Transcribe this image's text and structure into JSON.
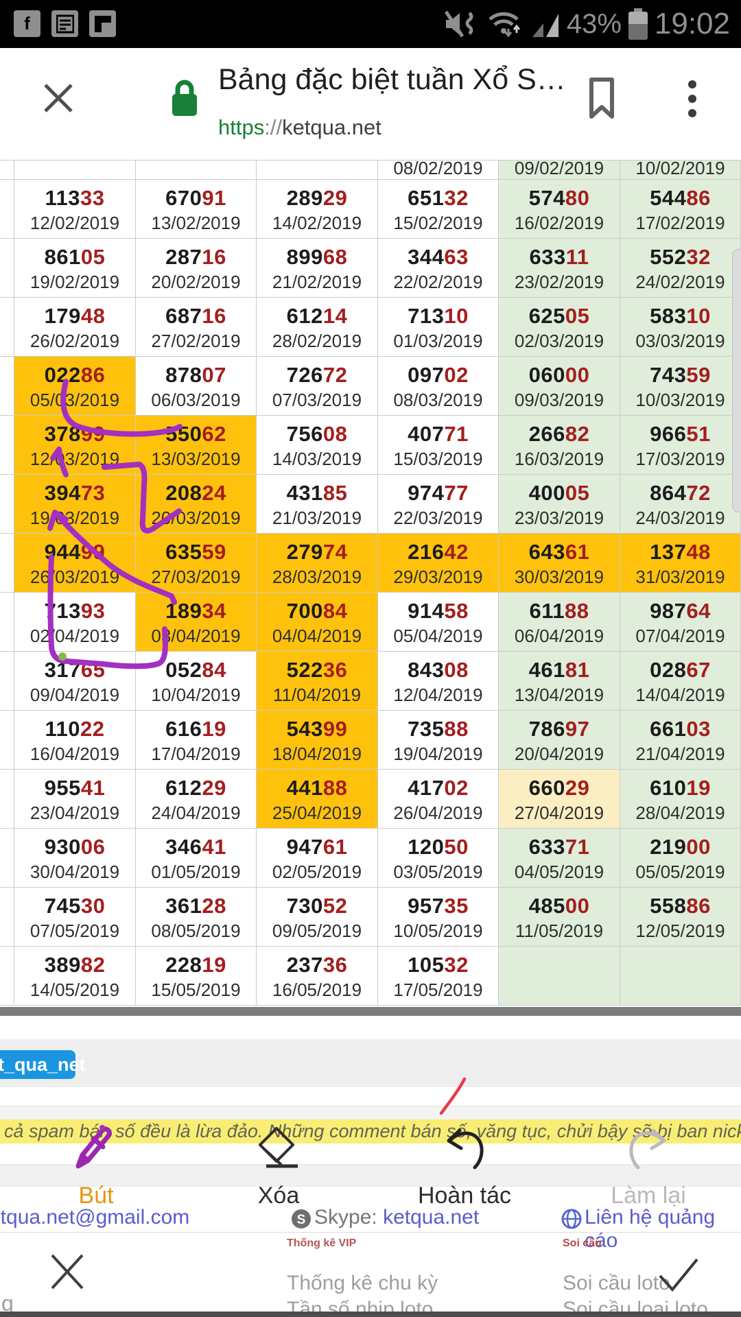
{
  "status_bar": {
    "time": "19:02",
    "battery_percent": "43%",
    "left_icons": [
      "facebook-icon",
      "notes-icon",
      "flipboard-icon"
    ],
    "right_icons": [
      "mute-vibrate-icon",
      "wifi-icon",
      "signal-icon",
      "battery-icon"
    ]
  },
  "browser": {
    "page_title": "Bảng đặc biệt tuần Xổ S…",
    "url_scheme": "https",
    "url_sep": "://",
    "url_host": "ketqua.net"
  },
  "table": {
    "partial_row": {
      "dates": [
        "",
        "",
        "",
        "08/02/2019",
        "09/02/2019",
        "10/02/2019"
      ],
      "bgs": [
        "w",
        "w",
        "w",
        "w",
        "g",
        "g"
      ]
    },
    "rows": [
      {
        "cells": [
          {
            "n3": "113",
            "n2": "33",
            "date": "12/02/2019",
            "bg": "w"
          },
          {
            "n3": "670",
            "n2": "91",
            "date": "13/02/2019",
            "bg": "w"
          },
          {
            "n3": "289",
            "n2": "29",
            "date": "14/02/2019",
            "bg": "w"
          },
          {
            "n3": "651",
            "n2": "32",
            "date": "15/02/2019",
            "bg": "w"
          },
          {
            "n3": "574",
            "n2": "80",
            "date": "16/02/2019",
            "bg": "g"
          },
          {
            "n3": "544",
            "n2": "86",
            "date": "17/02/2019",
            "bg": "g"
          }
        ]
      },
      {
        "cells": [
          {
            "n3": "861",
            "n2": "05",
            "date": "19/02/2019",
            "bg": "w"
          },
          {
            "n3": "287",
            "n2": "16",
            "date": "20/02/2019",
            "bg": "w"
          },
          {
            "n3": "899",
            "n2": "68",
            "date": "21/02/2019",
            "bg": "w"
          },
          {
            "n3": "344",
            "n2": "63",
            "date": "22/02/2019",
            "bg": "w"
          },
          {
            "n3": "633",
            "n2": "11",
            "date": "23/02/2019",
            "bg": "g"
          },
          {
            "n3": "552",
            "n2": "32",
            "date": "24/02/2019",
            "bg": "g"
          }
        ]
      },
      {
        "cells": [
          {
            "n3": "179",
            "n2": "48",
            "date": "26/02/2019",
            "bg": "w"
          },
          {
            "n3": "687",
            "n2": "16",
            "date": "27/02/2019",
            "bg": "w"
          },
          {
            "n3": "612",
            "n2": "14",
            "date": "28/02/2019",
            "bg": "w"
          },
          {
            "n3": "713",
            "n2": "10",
            "date": "01/03/2019",
            "bg": "w"
          },
          {
            "n3": "625",
            "n2": "05",
            "date": "02/03/2019",
            "bg": "g"
          },
          {
            "n3": "583",
            "n2": "10",
            "date": "03/03/2019",
            "bg": "g"
          }
        ]
      },
      {
        "cells": [
          {
            "n3": "022",
            "n2": "86",
            "date": "05/03/2019",
            "bg": "o"
          },
          {
            "n3": "878",
            "n2": "07",
            "date": "06/03/2019",
            "bg": "w"
          },
          {
            "n3": "726",
            "n2": "72",
            "date": "07/03/2019",
            "bg": "w"
          },
          {
            "n3": "097",
            "n2": "02",
            "date": "08/03/2019",
            "bg": "w"
          },
          {
            "n3": "060",
            "n2": "00",
            "date": "09/03/2019",
            "bg": "g"
          },
          {
            "n3": "743",
            "n2": "59",
            "date": "10/03/2019",
            "bg": "g"
          }
        ]
      },
      {
        "cells": [
          {
            "n3": "378",
            "n2": "99",
            "date": "12/03/2019",
            "bg": "o"
          },
          {
            "n3": "550",
            "n2": "62",
            "date": "13/03/2019",
            "bg": "o"
          },
          {
            "n3": "756",
            "n2": "08",
            "date": "14/03/2019",
            "bg": "w"
          },
          {
            "n3": "407",
            "n2": "71",
            "date": "15/03/2019",
            "bg": "w"
          },
          {
            "n3": "266",
            "n2": "82",
            "date": "16/03/2019",
            "bg": "g"
          },
          {
            "n3": "966",
            "n2": "51",
            "date": "17/03/2019",
            "bg": "g"
          }
        ]
      },
      {
        "cells": [
          {
            "n3": "394",
            "n2": "73",
            "date": "19/03/2019",
            "bg": "o"
          },
          {
            "n3": "208",
            "n2": "24",
            "date": "20/03/2019",
            "bg": "o"
          },
          {
            "n3": "431",
            "n2": "85",
            "date": "21/03/2019",
            "bg": "w"
          },
          {
            "n3": "974",
            "n2": "77",
            "date": "22/03/2019",
            "bg": "w"
          },
          {
            "n3": "400",
            "n2": "05",
            "date": "23/03/2019",
            "bg": "g"
          },
          {
            "n3": "864",
            "n2": "72",
            "date": "24/03/2019",
            "bg": "g"
          }
        ]
      },
      {
        "cells": [
          {
            "n3": "944",
            "n2": "99",
            "date": "26/03/2019",
            "bg": "o"
          },
          {
            "n3": "635",
            "n2": "59",
            "date": "27/03/2019",
            "bg": "o"
          },
          {
            "n3": "279",
            "n2": "74",
            "date": "28/03/2019",
            "bg": "o"
          },
          {
            "n3": "216",
            "n2": "42",
            "date": "29/03/2019",
            "bg": "o"
          },
          {
            "n3": "643",
            "n2": "61",
            "date": "30/03/2019",
            "bg": "o"
          },
          {
            "n3": "137",
            "n2": "48",
            "date": "31/03/2019",
            "bg": "o"
          }
        ]
      },
      {
        "cells": [
          {
            "n3": "713",
            "n2": "93",
            "date": "02/04/2019",
            "bg": "w"
          },
          {
            "n3": "189",
            "n2": "34",
            "date": "03/04/2019",
            "bg": "o"
          },
          {
            "n3": "700",
            "n2": "84",
            "date": "04/04/2019",
            "bg": "o"
          },
          {
            "n3": "914",
            "n2": "58",
            "date": "05/04/2019",
            "bg": "w"
          },
          {
            "n3": "611",
            "n2": "88",
            "date": "06/04/2019",
            "bg": "g"
          },
          {
            "n3": "987",
            "n2": "64",
            "date": "07/04/2019",
            "bg": "g"
          }
        ]
      },
      {
        "cells": [
          {
            "n3": "317",
            "n2": "65",
            "date": "09/04/2019",
            "bg": "w"
          },
          {
            "n3": "052",
            "n2": "84",
            "date": "10/04/2019",
            "bg": "w"
          },
          {
            "n3": "522",
            "n2": "36",
            "date": "11/04/2019",
            "bg": "o"
          },
          {
            "n3": "843",
            "n2": "08",
            "date": "12/04/2019",
            "bg": "w"
          },
          {
            "n3": "461",
            "n2": "81",
            "date": "13/04/2019",
            "bg": "g"
          },
          {
            "n3": "028",
            "n2": "67",
            "date": "14/04/2019",
            "bg": "g"
          }
        ]
      },
      {
        "cells": [
          {
            "n3": "110",
            "n2": "22",
            "date": "16/04/2019",
            "bg": "w"
          },
          {
            "n3": "616",
            "n2": "19",
            "date": "17/04/2019",
            "bg": "w"
          },
          {
            "n3": "543",
            "n2": "99",
            "date": "18/04/2019",
            "bg": "o"
          },
          {
            "n3": "735",
            "n2": "88",
            "date": "19/04/2019",
            "bg": "w"
          },
          {
            "n3": "786",
            "n2": "97",
            "date": "20/04/2019",
            "bg": "g"
          },
          {
            "n3": "661",
            "n2": "03",
            "date": "21/04/2019",
            "bg": "g"
          }
        ]
      },
      {
        "cells": [
          {
            "n3": "955",
            "n2": "41",
            "date": "23/04/2019",
            "bg": "w"
          },
          {
            "n3": "612",
            "n2": "29",
            "date": "24/04/2019",
            "bg": "w"
          },
          {
            "n3": "441",
            "n2": "88",
            "date": "25/04/2019",
            "bg": "o"
          },
          {
            "n3": "417",
            "n2": "02",
            "date": "26/04/2019",
            "bg": "w"
          },
          {
            "n3": "660",
            "n2": "29",
            "date": "27/04/2019",
            "bg": "y"
          },
          {
            "n3": "610",
            "n2": "19",
            "date": "28/04/2019",
            "bg": "g"
          }
        ]
      },
      {
        "cells": [
          {
            "n3": "930",
            "n2": "06",
            "date": "30/04/2019",
            "bg": "w"
          },
          {
            "n3": "346",
            "n2": "41",
            "date": "01/05/2019",
            "bg": "w"
          },
          {
            "n3": "947",
            "n2": "61",
            "date": "02/05/2019",
            "bg": "w"
          },
          {
            "n3": "120",
            "n2": "50",
            "date": "03/05/2019",
            "bg": "w"
          },
          {
            "n3": "633",
            "n2": "71",
            "date": "04/05/2019",
            "bg": "g"
          },
          {
            "n3": "219",
            "n2": "00",
            "date": "05/05/2019",
            "bg": "g"
          }
        ]
      },
      {
        "cells": [
          {
            "n3": "745",
            "n2": "30",
            "date": "07/05/2019",
            "bg": "w"
          },
          {
            "n3": "361",
            "n2": "28",
            "date": "08/05/2019",
            "bg": "w"
          },
          {
            "n3": "730",
            "n2": "52",
            "date": "09/05/2019",
            "bg": "w"
          },
          {
            "n3": "957",
            "n2": "35",
            "date": "10/05/2019",
            "bg": "w"
          },
          {
            "n3": "485",
            "n2": "00",
            "date": "11/05/2019",
            "bg": "g"
          },
          {
            "n3": "558",
            "n2": "86",
            "date": "12/05/2019",
            "bg": "g"
          }
        ]
      },
      {
        "cells": [
          {
            "n3": "389",
            "n2": "82",
            "date": "14/05/2019",
            "bg": "w"
          },
          {
            "n3": "228",
            "n2": "19",
            "date": "15/05/2019",
            "bg": "w"
          },
          {
            "n3": "237",
            "n2": "36",
            "date": "16/05/2019",
            "bg": "w"
          },
          {
            "n3": "105",
            "n2": "32",
            "date": "17/05/2019",
            "bg": "w"
          },
          {
            "n3": "",
            "n2": "",
            "date": "",
            "bg": "g"
          },
          {
            "n3": "",
            "n2": "",
            "date": "",
            "bg": "g"
          }
        ]
      }
    ]
  },
  "share_chip": {
    "label": "et_qua_net",
    "color": "#1b95e0"
  },
  "banner": {
    "text": "cả spam bán số đều là lừa đảo. Những comment bán số, văng tục, chửi bậy sẽ bị ban nick.",
    "bg": "#f9ee74"
  },
  "toolbar": {
    "pen_label": "Bút",
    "erase_label": "Xóa",
    "undo_label": "Hoàn tác",
    "redo_label": "Làm lại",
    "pen_active_color": "#e8940f"
  },
  "links": {
    "email": "etqua.net@gmail.com",
    "skype_prefix": "Skype: ",
    "skype_value": "ketqua.net",
    "ads": "Liên hệ quảng cáo"
  },
  "bottom_sheet": {
    "stats_header": "Thống kê VIP",
    "stats_items": [
      "Thống kê chu kỳ",
      "Tần số nhịp loto"
    ],
    "soicau_header": "Soi cầu",
    "soicau_items": [
      "Soi cầu loto",
      "Soi cầu loại loto"
    ],
    "left_cut_text": "g"
  },
  "annotation_colors": {
    "pen_purple": "#a42fc0",
    "pen_red": "#e73b47",
    "pen_green_dot": "#82bb4f"
  },
  "cell_colors": {
    "highlight_orange": "#fec20d",
    "weekend_green": "#dfedda",
    "pale_yellow": "#fbeec3",
    "digit_red": "#a41e1e"
  }
}
